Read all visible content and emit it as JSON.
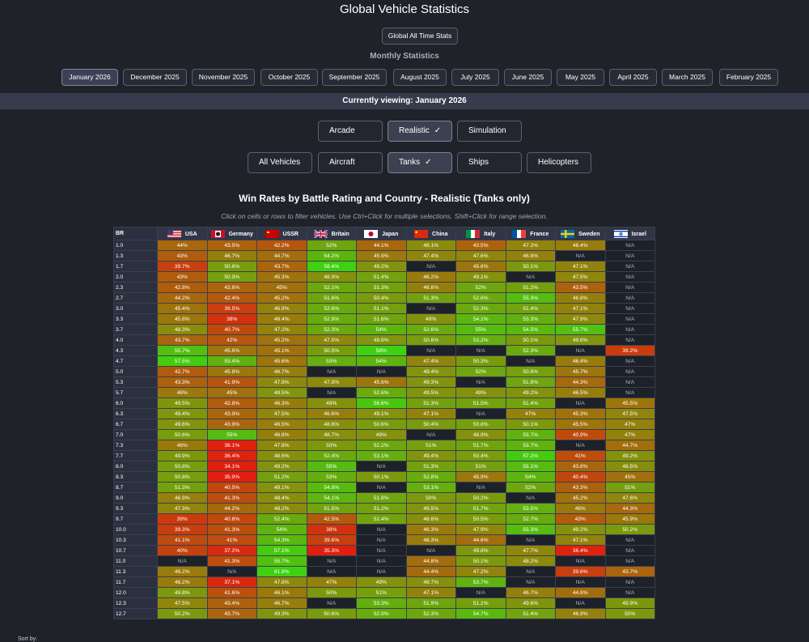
{
  "page_title": "Global Vehicle Statistics",
  "all_time_label": "Global All Time Stats",
  "monthly_label": "Monthly Statistics",
  "months": [
    "January 2026",
    "December 2025",
    "November 2025",
    "October 2025",
    "September 2025",
    "August 2025",
    "July 2025",
    "June 2025",
    "May 2025",
    "April 2025",
    "March 2025",
    "February 2025"
  ],
  "active_month": "January 2026",
  "viewing_text": "Currently viewing: January 2026",
  "modes": [
    "Arcade",
    "Realistic",
    "Simulation"
  ],
  "active_mode": "Realistic",
  "categories": [
    "All Vehicles",
    "Aircraft",
    "Tanks",
    "Ships",
    "Helicopters"
  ],
  "active_category": "Tanks",
  "check_glyph": "✓",
  "chart_title": "Win Rates by Battle Rating and Country - Realistic (Tanks only)",
  "hint": "Click on cells or rows to filter vehicles. Use Ctrl+Click for multiple selections, Shift+Click for range selection.",
  "table_header_br": "BR",
  "countries": [
    "USA",
    "Germany",
    "USSR",
    "Britain",
    "Japan",
    "China",
    "Italy",
    "France",
    "Sweden",
    "Israel"
  ],
  "flag_icons": [
    "usa-flag-icon",
    "germany-flag-icon",
    "ussr-flag-icon",
    "britain-flag-icon",
    "japan-flag-icon",
    "china-flag-icon",
    "italy-flag-icon",
    "france-flag-icon",
    "sweden-flag-icon",
    "israel-flag-icon"
  ],
  "color_scale": {
    "low": "#e01f0e",
    "mid": "#8c8a0c",
    "high": "#3fd011",
    "na": "#1d2129"
  },
  "rows": [
    {
      "br": "1.0",
      "v": [
        "44%",
        "43.5%",
        "42.2%",
        "52%",
        "44.1%",
        "48.1%",
        "43.5%",
        "47.2%",
        "46.4%",
        "N/A"
      ]
    },
    {
      "br": "1.3",
      "v": [
        "43%",
        "46.7%",
        "44.7%",
        "54.2%",
        "45.9%",
        "47.4%",
        "47.6%",
        "46.9%",
        "N/A",
        "N/A"
      ]
    },
    {
      "br": "1.7",
      "v": [
        "39.7%",
        "50.6%",
        "43.7%",
        "58.4%",
        "49.2%",
        "N/A",
        "45.6%",
        "50.1%",
        "47.1%",
        "N/A"
      ]
    },
    {
      "br": "2.0",
      "v": [
        "43%",
        "50.9%",
        "45.3%",
        "48.9%",
        "51.4%",
        "46.2%",
        "49.1%",
        "N/A",
        "47.5%",
        "N/A"
      ]
    },
    {
      "br": "2.3",
      "v": [
        "42.8%",
        "43.6%",
        "45%",
        "52.1%",
        "51.3%",
        "46.8%",
        "52%",
        "51.2%",
        "43.5%",
        "N/A"
      ]
    },
    {
      "br": "2.7",
      "v": [
        "44.2%",
        "42.4%",
        "45.2%",
        "51.6%",
        "50.4%",
        "51.3%",
        "52.6%",
        "55.3%",
        "46.8%",
        "N/A"
      ]
    },
    {
      "br": "3.0",
      "v": [
        "45.4%",
        "39.5%",
        "46.9%",
        "52.6%",
        "51.1%",
        "N/A",
        "52.3%",
        "51.4%",
        "47.1%",
        "N/A"
      ]
    },
    {
      "br": "3.3",
      "v": [
        "45.8%",
        "38%",
        "46.4%",
        "52.9%",
        "51.6%",
        "49%",
        "54.1%",
        "53.3%",
        "47.9%",
        "N/A"
      ]
    },
    {
      "br": "3.7",
      "v": [
        "48.3%",
        "40.7%",
        "47.2%",
        "52.3%",
        "54%",
        "52.6%",
        "55%",
        "54.5%",
        "55.7%",
        "N/A"
      ]
    },
    {
      "br": "4.0",
      "v": [
        "43.7%",
        "42%",
        "45.2%",
        "47.5%",
        "49.6%",
        "50.6%",
        "53.2%",
        "50.1%",
        "49.6%",
        "N/A"
      ]
    },
    {
      "br": "4.3",
      "v": [
        "55.7%",
        "45.6%",
        "45.1%",
        "50.5%",
        "58%",
        "N/A",
        "N/A",
        "52.3%",
        "N/A",
        "39.2%"
      ]
    },
    {
      "br": "4.7",
      "v": [
        "57.5%",
        "53.4%",
        "45.6%",
        "53%",
        "54%",
        "47.4%",
        "50.3%",
        "N/A",
        "46.4%",
        "N/A"
      ]
    },
    {
      "br": "5.0",
      "v": [
        "42.7%",
        "45.8%",
        "46.7%",
        "N/A",
        "N/A",
        "49.4%",
        "52%",
        "50.8%",
        "45.7%",
        "N/A"
      ]
    },
    {
      "br": "5.3",
      "v": [
        "43.3%",
        "41.9%",
        "47.9%",
        "47.9%",
        "45.6%",
        "49.3%",
        "N/A",
        "51.8%",
        "44.3%",
        "N/A"
      ]
    },
    {
      "br": "5.7",
      "v": [
        "46%",
        "45%",
        "49.5%",
        "N/A",
        "52.6%",
        "49.5%",
        "49%",
        "49.2%",
        "46.5%",
        "N/A"
      ]
    },
    {
      "br": "6.0",
      "v": [
        "49.5%",
        "42.8%",
        "46.3%",
        "49%",
        "56.6%",
        "51.3%",
        "51.5%",
        "51.4%",
        "N/A",
        "45.5%"
      ]
    },
    {
      "br": "6.3",
      "v": [
        "49.4%",
        "43.9%",
        "47.5%",
        "46.6%",
        "49.1%",
        "47.1%",
        "N/A",
        "47%",
        "45.3%",
        "47.5%"
      ]
    },
    {
      "br": "6.7",
      "v": [
        "49.6%",
        "43.9%",
        "46.5%",
        "48.6%",
        "50.6%",
        "50.4%",
        "50.8%",
        "50.1%",
        "45.5%",
        "47%"
      ]
    },
    {
      "br": "7.0",
      "v": [
        "50.6%",
        "55%",
        "46.8%",
        "48.7%",
        "49%",
        "N/A",
        "48.9%",
        "53.7%",
        "40.9%",
        "47%"
      ]
    },
    {
      "br": "7.3",
      "v": [
        "46%",
        "36.1%",
        "47.8%",
        "50%",
        "52.2%",
        "51%",
        "51.7%",
        "53.7%",
        "N/A",
        "44.7%"
      ]
    },
    {
      "br": "7.7",
      "v": [
        "49.9%",
        "36.4%",
        "48.6%",
        "52.4%",
        "53.1%",
        "49.4%",
        "50.4%",
        "57.2%",
        "41%",
        "49.2%"
      ]
    },
    {
      "br": "8.0",
      "v": [
        "50.8%",
        "34.1%",
        "49.2%",
        "55%",
        "N/A",
        "51.3%",
        "51%",
        "55.1%",
        "43.8%",
        "48.5%"
      ]
    },
    {
      "br": "8.3",
      "v": [
        "50.8%",
        "35.9%",
        "51.2%",
        "53%",
        "50.1%",
        "52.8%",
        "45.9%",
        "54%",
        "40.4%",
        "45%"
      ]
    },
    {
      "br": "8.7",
      "v": [
        "51.3%",
        "40.5%",
        "49.1%",
        "54.8%",
        "N/A",
        "53.1%",
        "N/A",
        "52%",
        "43.3%",
        "51%"
      ]
    },
    {
      "br": "9.0",
      "v": [
        "46.9%",
        "41.3%",
        "48.4%",
        "54.1%",
        "51.8%",
        "50%",
        "50.2%",
        "N/A",
        "45.2%",
        "47.6%"
      ]
    },
    {
      "br": "9.3",
      "v": [
        "47.3%",
        "44.2%",
        "48.2%",
        "51.5%",
        "51.2%",
        "49.5%",
        "51.7%",
        "53.5%",
        "46%",
        "44.3%"
      ]
    },
    {
      "br": "9.7",
      "v": [
        "39%",
        "40.6%",
        "52.4%",
        "42.5%",
        "51.4%",
        "48.6%",
        "50.5%",
        "52.7%",
        "43%",
        "45.9%"
      ]
    },
    {
      "br": "10.0",
      "v": [
        "39.3%",
        "41.3%",
        "54%",
        "38%",
        "N/A",
        "46.3%",
        "47.9%",
        "55.3%",
        "49.2%",
        "50.2%"
      ]
    },
    {
      "br": "10.3",
      "v": [
        "41.1%",
        "41%",
        "54.3%",
        "39.6%",
        "N/A",
        "46.3%",
        "44.6%",
        "N/A",
        "47.1%",
        "N/A"
      ]
    },
    {
      "br": "10.7",
      "v": [
        "40%",
        "37.2%",
        "57.1%",
        "35.3%",
        "N/A",
        "N/A",
        "49.8%",
        "47.7%",
        "36.4%",
        "N/A"
      ]
    },
    {
      "br": "11.0",
      "v": [
        "N/A",
        "41.3%",
        "55.7%",
        "N/A",
        "N/A",
        "44.8%",
        "50.1%",
        "48.2%",
        "N/A",
        "N/A"
      ]
    },
    {
      "br": "11.3",
      "v": [
        "46.2%",
        "N/A",
        "61.8%",
        "N/A",
        "N/A",
        "44.4%",
        "47.2%",
        "N/A",
        "39.6%",
        "43.7%"
      ]
    },
    {
      "br": "11.7",
      "v": [
        "46.2%",
        "37.1%",
        "47.8%",
        "47%",
        "49%",
        "48.7%",
        "53.7%",
        "N/A",
        "N/A",
        "N/A"
      ]
    },
    {
      "br": "12.0",
      "v": [
        "49.8%",
        "41.6%",
        "46.1%",
        "50%",
        "51%",
        "47.1%",
        "N/A",
        "46.7%",
        "44.8%",
        "N/A"
      ]
    },
    {
      "br": "12.3",
      "v": [
        "47.5%",
        "43.4%",
        "46.7%",
        "N/A",
        "53.3%",
        "51.9%",
        "51.1%",
        "49.6%",
        "N/A",
        "49.9%"
      ]
    },
    {
      "br": "12.7",
      "v": [
        "50.2%",
        "43.7%",
        "49.3%",
        "50.6%",
        "52.9%",
        "52.3%",
        "54.7%",
        "51.4%",
        "46.9%",
        "50%"
      ]
    }
  ],
  "sort_label": "Sort by:"
}
